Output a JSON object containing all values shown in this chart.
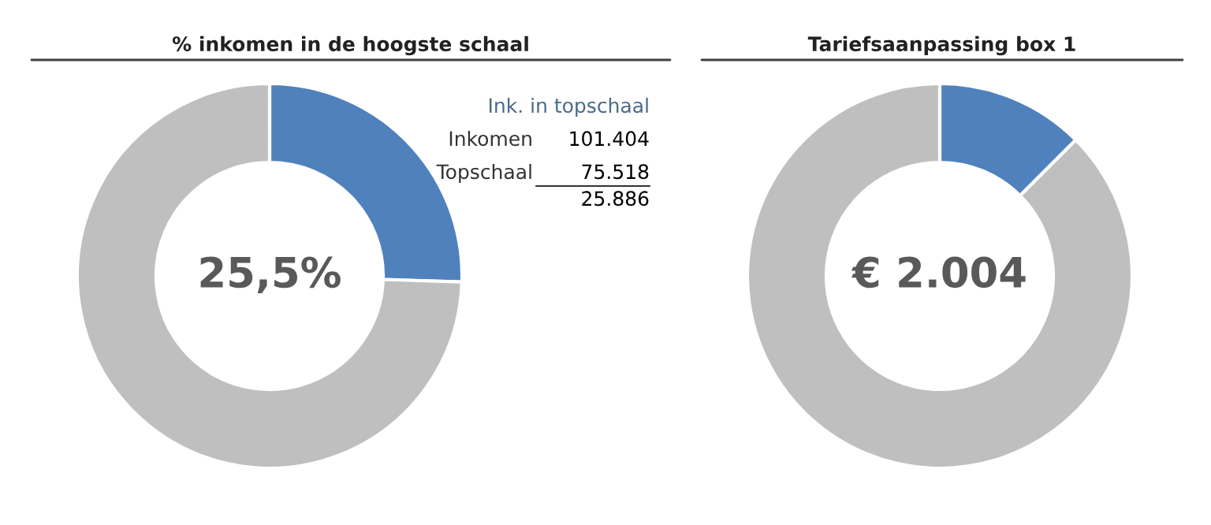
{
  "chart_data": [
    {
      "type": "donut",
      "title": "% inkomen in de hoogste schaal",
      "categories": [
        null,
        null
      ],
      "values": [
        25.5,
        74.5
      ],
      "colors": [
        "#4f81bd",
        "#bfbfbf"
      ],
      "legend": false,
      "annotations": [
        "25,5%",
        "Ink. in topschaal",
        "Inkomen",
        "101.404",
        "Topschaal",
        "75.518",
        "25.886"
      ]
    },
    {
      "type": "donut",
      "title": "Tariefsaanpassing box 1",
      "categories": [
        null,
        null
      ],
      "values": [
        12.5,
        87.5
      ],
      "colors": [
        "#4f81bd",
        "#bfbfbf"
      ],
      "legend": false,
      "annotations": [
        "€ 2.004"
      ]
    }
  ]
}
